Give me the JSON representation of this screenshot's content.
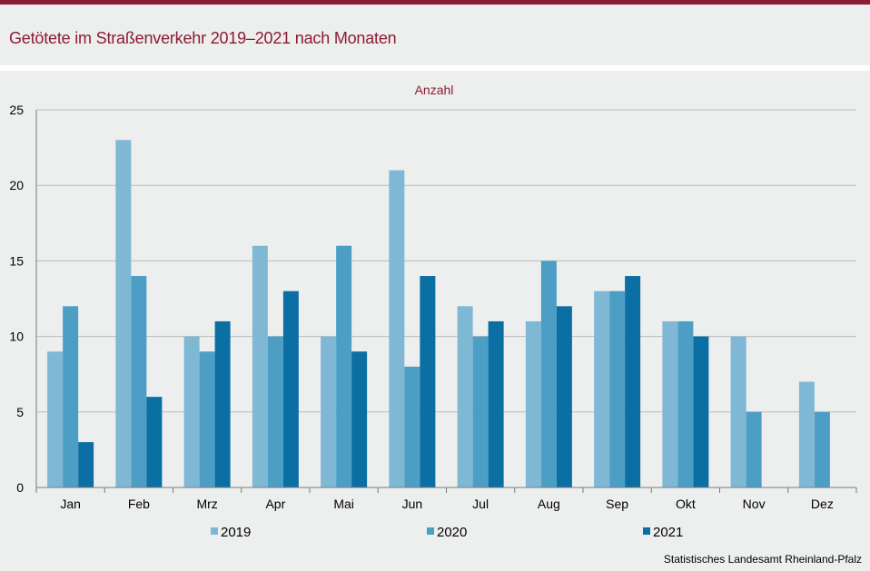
{
  "header": {
    "title": "Getötete im Straßenverkehr 2019–2021 nach Monaten"
  },
  "footer": {
    "source": "Statistisches Landesamt  Rheinland-Pfalz"
  },
  "colors": {
    "brand": "#8b1c34",
    "series": [
      "#7fb8d4",
      "#4d9ec4",
      "#0b6fa4"
    ]
  },
  "chart_data": {
    "type": "bar",
    "title": "",
    "ylabel": "Anzahl",
    "xlabel": "",
    "ylim": [
      0,
      25
    ],
    "yticks": [
      0,
      5,
      10,
      15,
      20,
      25
    ],
    "grid": true,
    "legend_position": "bottom",
    "categories": [
      "Jan",
      "Feb",
      "Mrz",
      "Apr",
      "Mai",
      "Jun",
      "Jul",
      "Aug",
      "Sep",
      "Okt",
      "Nov",
      "Dez"
    ],
    "series": [
      {
        "name": "2019",
        "values": [
          9,
          23,
          10,
          16,
          10,
          21,
          12,
          11,
          13,
          11,
          10,
          7
        ]
      },
      {
        "name": "2020",
        "values": [
          12,
          14,
          9,
          10,
          16,
          8,
          10,
          15,
          13,
          11,
          5,
          5
        ]
      },
      {
        "name": "2021",
        "values": [
          3,
          6,
          11,
          13,
          9,
          14,
          11,
          12,
          14,
          10,
          null,
          null
        ]
      }
    ]
  }
}
